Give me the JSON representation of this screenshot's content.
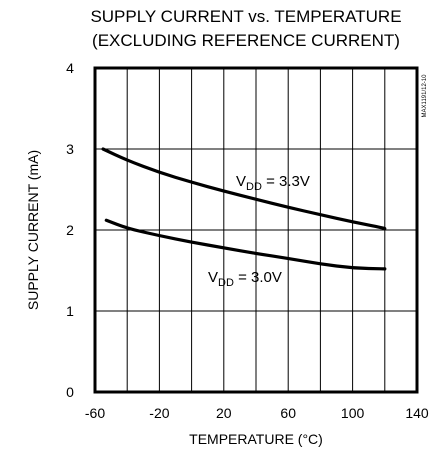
{
  "chart_data": {
    "type": "line",
    "title": "SUPPLY CURRENT vs. TEMPERATURE",
    "subtitle": "(EXCLUDING REFERENCE CURRENT)",
    "xlabel": "TEMPERATURE (°C)",
    "ylabel": "SUPPLY CURRENT  (mA)",
    "xlim": [
      -60,
      140
    ],
    "ylim": [
      0,
      4
    ],
    "x_ticks": [
      "-60",
      "-20",
      "20",
      "60",
      "100",
      "140"
    ],
    "y_ticks": [
      "0",
      "1",
      "2",
      "3",
      "4"
    ],
    "grid": true,
    "part_number": "MAX1191/12-10",
    "series": [
      {
        "label_main": "V",
        "label_sub": "DD",
        "label_rest": " = 3.3V",
        "x": [
          -55,
          -40,
          -20,
          0,
          20,
          40,
          60,
          80,
          100,
          120
        ],
        "y": [
          3.0,
          2.86,
          2.71,
          2.59,
          2.48,
          2.38,
          2.28,
          2.19,
          2.1,
          2.02
        ]
      },
      {
        "label_main": "V",
        "label_sub": "DD",
        "label_rest": " = 3.0V",
        "x": [
          -53,
          -40,
          -20,
          0,
          20,
          40,
          60,
          80,
          100,
          120
        ],
        "y": [
          2.12,
          2.02,
          1.93,
          1.85,
          1.78,
          1.71,
          1.65,
          1.58,
          1.53,
          1.52
        ]
      }
    ]
  }
}
